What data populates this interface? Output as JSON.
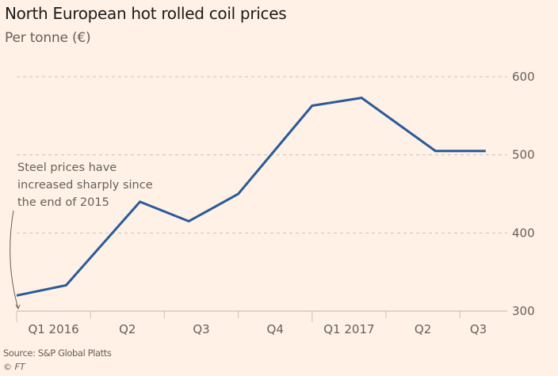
{
  "header": {
    "title": "North European hot rolled coil prices",
    "subtitle": "Per tonne (€)"
  },
  "footer": {
    "source": "Source: S&P Global Platts",
    "copyright": "© FT"
  },
  "colors": {
    "background": "#fff1e5",
    "line": "#2a5a9b",
    "grid": "#ccc1b7",
    "text": "#66605c"
  },
  "chart_data": {
    "type": "line",
    "title": "North European hot rolled coil prices",
    "subtitle": "Per tonne (€)",
    "xlabel": "",
    "ylabel": "Per tonne (€)",
    "ylim": [
      300,
      600
    ],
    "yticks": [
      300,
      400,
      500,
      600
    ],
    "ytick_labels": [
      "300",
      "400",
      "500",
      "600"
    ],
    "y_axis_side": "right",
    "grid": "horizontal dashed",
    "x_range_quarters": [
      0,
      6.5
    ],
    "xtick_labels": [
      {
        "label": "Q1 2016",
        "q": 0.5
      },
      {
        "label": "Q2",
        "q": 1.5
      },
      {
        "label": "Q3",
        "q": 2.5
      },
      {
        "label": "Q4",
        "q": 3.5
      },
      {
        "label": "Q1 2017",
        "q": 4.5
      },
      {
        "label": "Q2",
        "q": 5.5
      },
      {
        "label": "Q3",
        "q": 6.25
      }
    ],
    "xtick_marks": [
      {
        "q": 0,
        "major": true
      },
      {
        "q": 1,
        "major": false
      },
      {
        "q": 2,
        "major": false
      },
      {
        "q": 3,
        "major": false
      },
      {
        "q": 4,
        "major": true
      },
      {
        "q": 5,
        "major": false
      },
      {
        "q": 6,
        "major": false
      }
    ],
    "series": [
      {
        "name": "Hot rolled coil price",
        "x": [
          0,
          0.67,
          1.67,
          2.33,
          3.0,
          4.0,
          4.67,
          5.67,
          6.35
        ],
        "values": [
          320,
          333,
          440,
          415,
          450,
          563,
          573,
          505,
          505
        ]
      }
    ],
    "annotations": [
      {
        "lines": [
          "Steel prices have",
          "increased sharply since",
          "the end of 2015"
        ],
        "points_to": {
          "q": 0,
          "value": 300
        }
      }
    ]
  }
}
